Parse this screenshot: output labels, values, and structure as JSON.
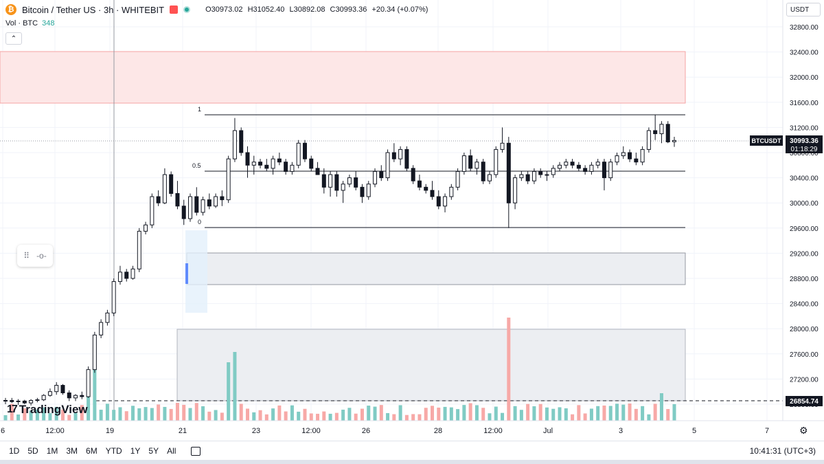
{
  "header": {
    "symbol_title": "Bitcoin / Tether US · 3h · WHITEBIT",
    "logo_glyph": "₿",
    "open": "O30973.02",
    "high": "H31052.40",
    "low": "L30892.08",
    "close": "C30993.36",
    "change": "+20.34 (+0.07%)",
    "volume_label": "Vol · BTC",
    "volume_value": "348"
  },
  "currency_selector": "USDT",
  "price_axis": {
    "ticks": [
      "32800.00",
      "32400.00",
      "32000.00",
      "31600.00",
      "31200.00",
      "30800.00",
      "30400.00",
      "30000.00",
      "29600.00",
      "29200.00",
      "28800.00",
      "28400.00",
      "28000.00",
      "27600.00",
      "27200.00",
      "26800.00"
    ],
    "symbol_label": "BTCUSDT",
    "last_price": "30993.36",
    "countdown": "01:18:29",
    "dashed_level": "26854.74"
  },
  "time_axis": {
    "labels": [
      "6",
      "12:00",
      "19",
      "21",
      "23",
      "12:00",
      "26",
      "28",
      "12:00",
      "Jul",
      "3",
      "5",
      "7"
    ]
  },
  "fib": {
    "level_1": "1",
    "level_05": "0.5",
    "level_0": "0"
  },
  "bottom_bar": {
    "ranges": [
      "1D",
      "5D",
      "1M",
      "3M",
      "6M",
      "YTD",
      "1Y",
      "5Y",
      "All"
    ],
    "clock": "10:41:31 (UTC+3)"
  },
  "branding": {
    "name": "TradingView",
    "mark": "17"
  },
  "colors": {
    "up": "#26a69a",
    "down": "#ef5350",
    "resistance_zone": "#fde7e7",
    "support_zone": "#eceef2"
  },
  "chart_data": {
    "type": "candlestick",
    "ylim": [
      26500,
      33100
    ],
    "x_range": [
      "Jun 16",
      "Jul 7"
    ],
    "x_tick_labels": [
      "6",
      "12:00",
      "19",
      "21",
      "23",
      "12:00",
      "26",
      "28",
      "12:00",
      "Jul",
      "3",
      "5",
      "7"
    ],
    "ohlc_last": {
      "open": 30973.02,
      "high": 31052.4,
      "low": 30892.08,
      "close": 30993.36
    },
    "fib_levels": [
      {
        "label": "1",
        "price": 31400
      },
      {
        "label": "0.5",
        "price": 30500
      },
      {
        "label": "0",
        "price": 29600
      }
    ],
    "zones": [
      {
        "type": "resistance",
        "from": 31600,
        "to": 32400
      },
      {
        "type": "support",
        "from": 28700,
        "to": 29200
      },
      {
        "type": "support",
        "from": 26850,
        "to": 28000
      }
    ],
    "dashed_level": 26854.74
  }
}
